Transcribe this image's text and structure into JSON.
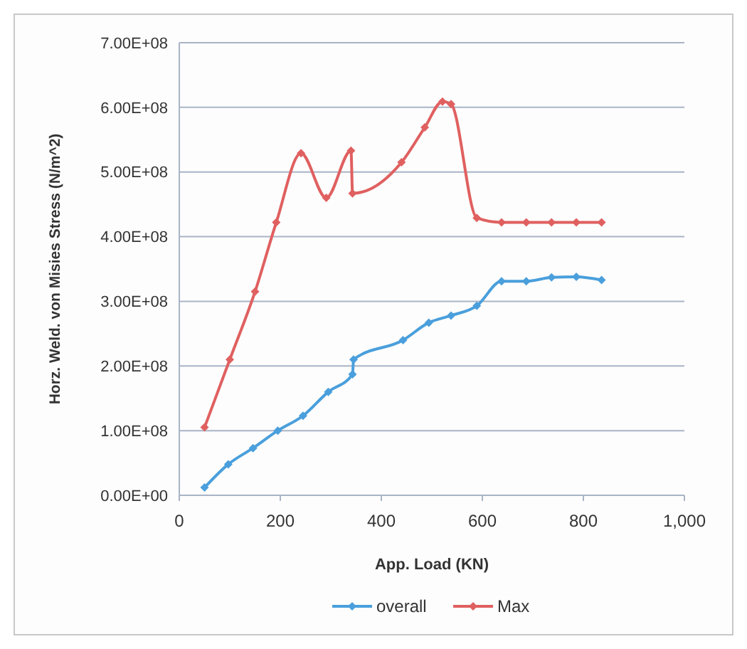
{
  "chart_data": {
    "type": "line",
    "xlabel": "App. Load (KN)",
    "ylabel": "Horz. Weld. von Misies Stress (N/m^2)",
    "xlim": [
      0,
      1000
    ],
    "xticks": [
      0,
      200,
      400,
      600,
      800,
      {
        "value": 1000,
        "label": "1,000"
      }
    ],
    "ylim": [
      0,
      700000000
    ],
    "yticks": [
      {
        "value": 0,
        "label": "0.00E+00"
      },
      {
        "value": 100000000,
        "label": "1.00E+08"
      },
      {
        "value": 200000000,
        "label": "2.00E+08"
      },
      {
        "value": 300000000,
        "label": "3.00E+08"
      },
      {
        "value": 400000000,
        "label": "4.00E+08"
      },
      {
        "value": 500000000,
        "label": "5.00E+08"
      },
      {
        "value": 600000000,
        "label": "6.00E+08"
      },
      {
        "value": 700000000,
        "label": "7.00E+08"
      }
    ],
    "grid": "y",
    "legend": "bottom",
    "marker": "diamond",
    "line_style": "solid",
    "series": [
      {
        "name": "overall",
        "color": "#4a9fdc",
        "x": [
          50,
          97,
          146,
          195,
          245,
          295,
          343,
          345,
          443,
          494,
          538,
          589,
          638,
          687,
          737,
          786,
          836
        ],
        "values": [
          12000000,
          48000000,
          73000000,
          100000000,
          123000000,
          160000000,
          187000000,
          210000000,
          240000000,
          267000000,
          278000000,
          293000000,
          331000000,
          331000000,
          337000000,
          338000000,
          333000000
        ]
      },
      {
        "name": "Max",
        "color": "#e06060",
        "x": [
          50,
          100,
          150,
          192,
          241,
          291,
          340,
          343,
          440,
          486,
          521,
          538,
          589,
          638,
          687,
          737,
          786,
          836
        ],
        "values": [
          105000000,
          210000000,
          315000000,
          422000000,
          529000000,
          460000000,
          533000000,
          467000000,
          515000000,
          569000000,
          609000000,
          605000000,
          429000000,
          422000000,
          422000000,
          422000000,
          422000000,
          422000000
        ]
      }
    ]
  }
}
